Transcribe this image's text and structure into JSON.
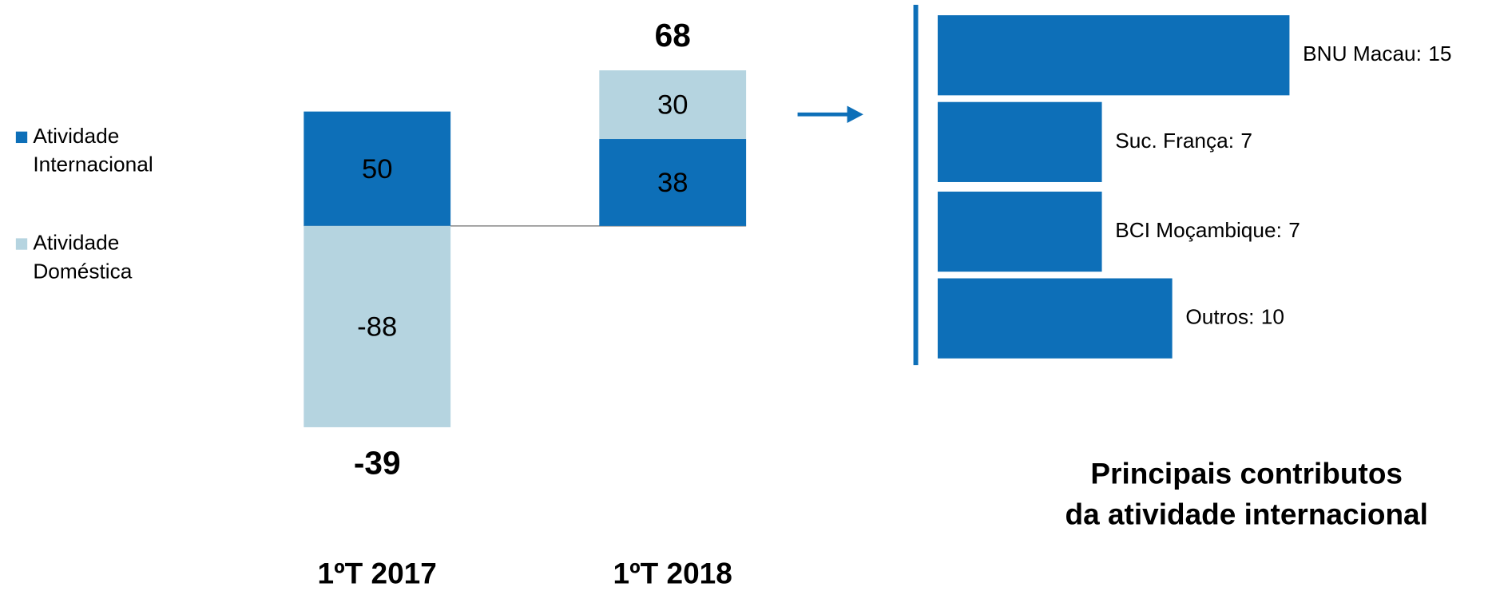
{
  "chart_data": [
    {
      "type": "stacked_bar",
      "categories": [
        "1ºT 2017",
        "1ºT 2018"
      ],
      "series": [
        {
          "name": "Atividade Internacional",
          "color": "#0d6fb8",
          "values": [
            50,
            38
          ]
        },
        {
          "name": "Atividade Doméstica",
          "color": "#b5d4e0",
          "values": [
            -88,
            30
          ]
        }
      ],
      "totals": [
        -39,
        68
      ]
    },
    {
      "type": "hbar",
      "title": [
        "Principais contributos",
        "da atividade internacional"
      ],
      "categories": [
        "BNU Macau:",
        "Suc. França:",
        "BCI Moçambique:",
        "Outros:"
      ],
      "values": [
        15,
        7,
        7,
        10
      ],
      "color": "#0d6fb8"
    }
  ]
}
